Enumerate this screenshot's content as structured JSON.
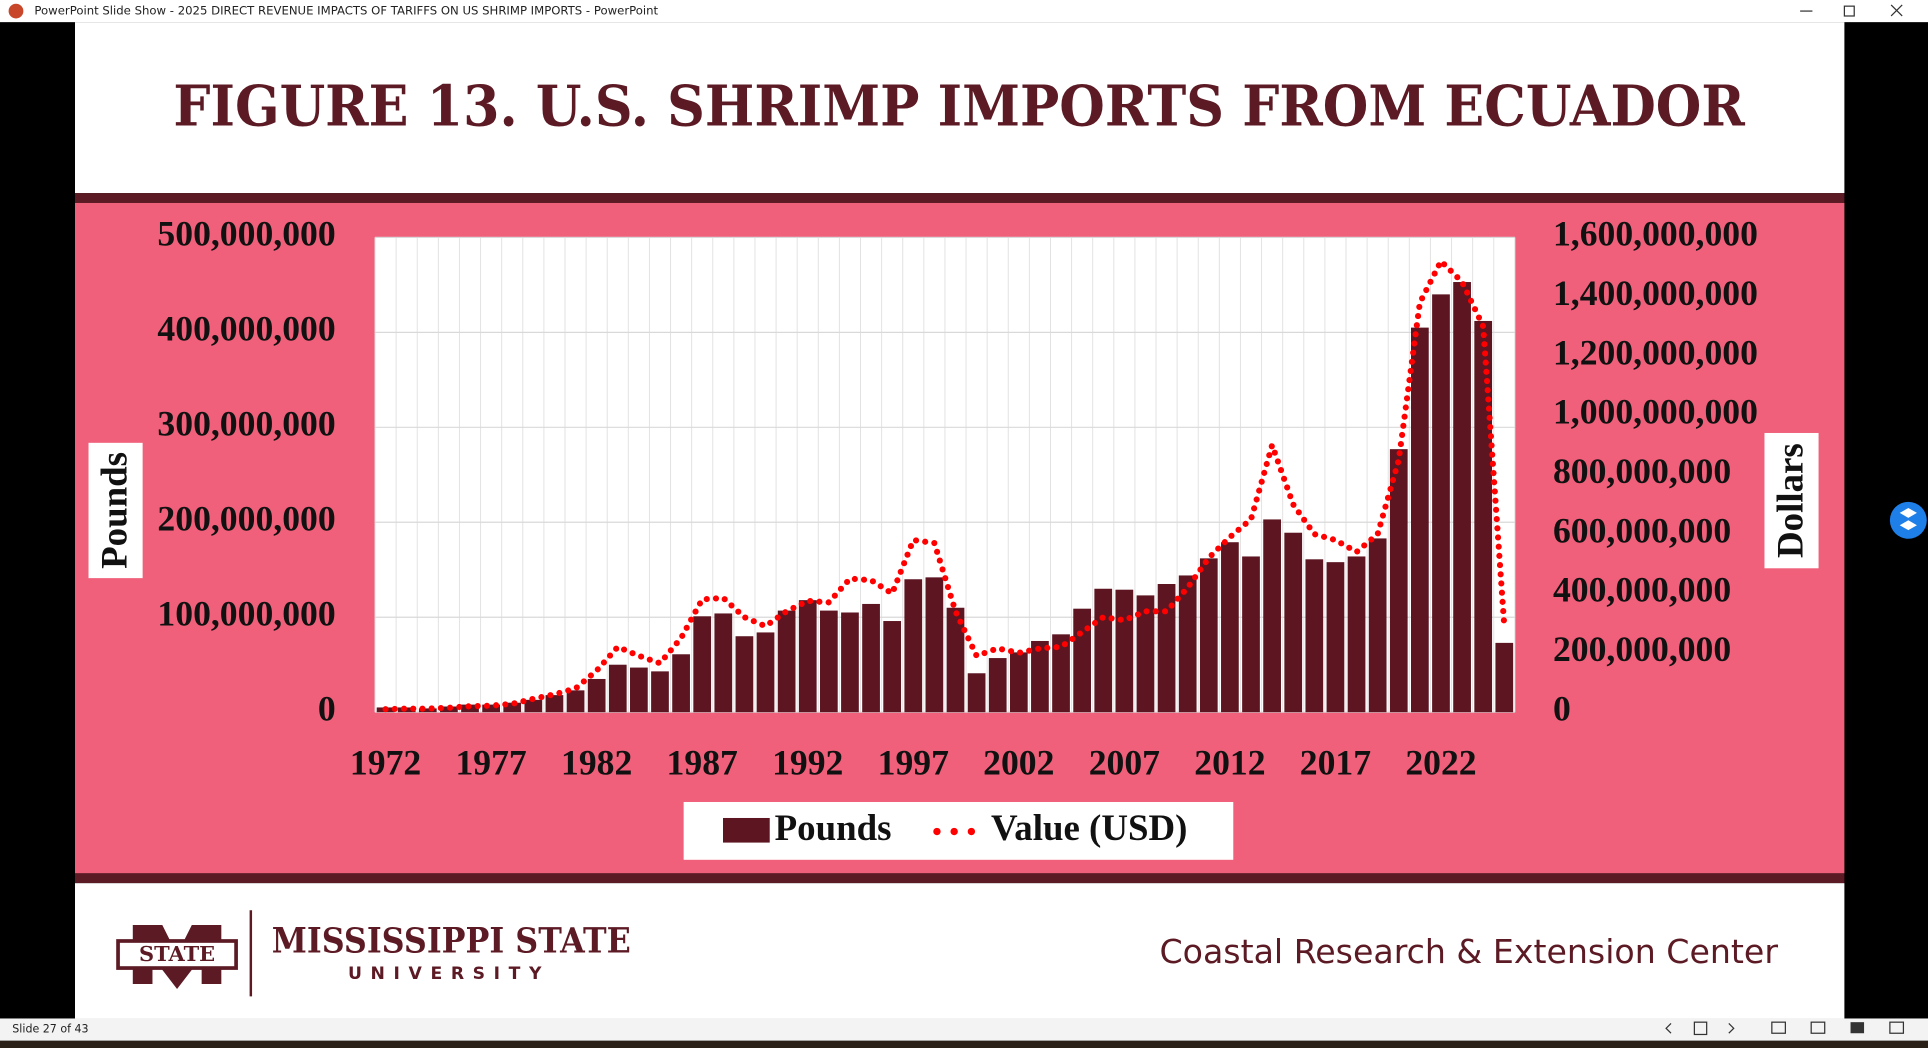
{
  "window": {
    "title": "PowerPoint Slide Show  -  2025 DIRECT REVENUE IMPACTS OF TARIFFS ON US SHRIMP IMPORTS - PowerPoint"
  },
  "slide": {
    "title": "FIGURE 13. U.S. SHRIMP IMPORTS FROM ECUADOR"
  },
  "chart_data": {
    "type": "bar_line",
    "categories": [
      "1972",
      null,
      null,
      null,
      null,
      "1977",
      null,
      null,
      null,
      null,
      "1982",
      null,
      null,
      null,
      null,
      "1987",
      null,
      null,
      null,
      null,
      "1992",
      null,
      null,
      null,
      null,
      "1997",
      null,
      null,
      null,
      null,
      "2002",
      null,
      null,
      null,
      null,
      "2007",
      null,
      null,
      null,
      null,
      "2012",
      null,
      null,
      null,
      null,
      "2017",
      null,
      null,
      null,
      null,
      "2022",
      null,
      null,
      null
    ],
    "series": [
      {
        "name": "Pounds",
        "type": "bar",
        "color": "#5c1521",
        "values": [
          5000000,
          5000000,
          4000000,
          6000000,
          8000000,
          8000000,
          10000000,
          13000000,
          18000000,
          23000000,
          35000000,
          50000000,
          47000000,
          43000000,
          61000000,
          101000000,
          104000000,
          80000000,
          84000000,
          107000000,
          118000000,
          107000000,
          105000000,
          114000000,
          96000000,
          140000000,
          142000000,
          110000000,
          41000000,
          57000000,
          63000000,
          75000000,
          82000000,
          109000000,
          130000000,
          129000000,
          123000000,
          135000000,
          144000000,
          162000000,
          179000000,
          164000000,
          203000000,
          189000000,
          161000000,
          158000000,
          164000000,
          183000000,
          277000000,
          405000000,
          440000000,
          453000000,
          412000000,
          73000000
        ]
      },
      {
        "name": "Value (USD)",
        "type": "line",
        "color": "#ff0000",
        "axis": "y2",
        "values": [
          10000000,
          12000000,
          12000000,
          15000000,
          20000000,
          22000000,
          28000000,
          45000000,
          60000000,
          80000000,
          140000000,
          220000000,
          190000000,
          165000000,
          250000000,
          380000000,
          385000000,
          320000000,
          290000000,
          340000000,
          375000000,
          370000000,
          450000000,
          445000000,
          400000000,
          580000000,
          570000000,
          340000000,
          190000000,
          215000000,
          200000000,
          215000000,
          220000000,
          270000000,
          320000000,
          310000000,
          340000000,
          340000000,
          420000000,
          520000000,
          590000000,
          650000000,
          900000000,
          700000000,
          600000000,
          580000000,
          540000000,
          600000000,
          850000000,
          1380000000,
          1520000000,
          1450000000,
          1300000000,
          290000000
        ]
      }
    ],
    "ylim": [
      0,
      500000000
    ],
    "yticks": [
      0,
      {
        "value": 100000000,
        "label": "100,000,000"
      },
      {
        "value": 200000000,
        "label": "200,000,000"
      },
      {
        "value": 300000000,
        "label": "300,000,000"
      },
      {
        "value": 400000000,
        "label": "400,000,000"
      },
      {
        "value": 500000000,
        "label": "500,000,000"
      }
    ],
    "y2lim": [
      0,
      1600000000
    ],
    "y2ticks": [
      0,
      {
        "value": 200000000,
        "label": "200,000,000"
      },
      {
        "value": 400000000,
        "label": "400,000,000"
      },
      {
        "value": 600000000,
        "label": "600,000,000"
      },
      {
        "value": 800000000,
        "label": "800,000,000"
      },
      {
        "value": 1000000000,
        "label": "1,000,000,000"
      },
      {
        "value": 1200000000,
        "label": "1,200,000,000"
      },
      {
        "value": 1400000000,
        "label": "1,400,000,000"
      },
      {
        "value": 1600000000,
        "label": "1,600,000,000"
      }
    ],
    "ylabel": "Pounds",
    "y2label": "Dollars",
    "grid": true,
    "legend": "bottom"
  },
  "footer": {
    "logo_mark": "STATE",
    "university": "MISSISSIPPI STATE",
    "university_sub": "UNIVERSITY",
    "center": "Coastal Research & Extension Center"
  },
  "status": {
    "slide": "Slide 27 of 43"
  }
}
